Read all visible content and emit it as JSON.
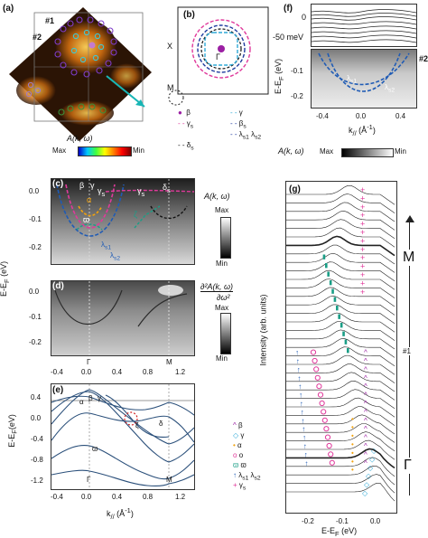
{
  "panels": {
    "a": {
      "label": "(a)",
      "marker1": "#1",
      "marker2": "#2",
      "title": "A(k, ω)",
      "colorbar": {
        "max": "Max",
        "min": "Min"
      }
    },
    "b": {
      "label": "(b)",
      "x_label": "X",
      "m_label": "M",
      "gamma": "Γ",
      "legend": [
        {
          "symbol": "●",
          "text": "β"
        },
        {
          "symbol": "- -",
          "text": "γ"
        },
        {
          "symbol": "- -",
          "text": "β"
        },
        {
          "symbol": "- -",
          "text": "γ"
        },
        {
          "symbol": "- -",
          "text": "λ"
        },
        {
          "symbol": "- -",
          "text": "λ"
        },
        {
          "symbol": "- -",
          "text": "δ"
        }
      ],
      "legend_subs": [
        "s",
        "s",
        "s1",
        "s2",
        "s"
      ],
      "legend_colors": {
        "beta": "#9b1fa3",
        "gamma_s": "#e0399b",
        "gamma": "#2fa9d6",
        "beta_s": "#2fa9d6",
        "lambda": "#1f3b9e",
        "delta_s": "#111111"
      }
    },
    "c": {
      "label": "(c)",
      "title": "A(k, ω)",
      "cb_max": "Max",
      "cb_min": "Min",
      "annotations": [
        "β",
        "γ",
        "γ",
        "α",
        "ϖ",
        "γ",
        "δ",
        "ζ",
        "λ",
        "λ"
      ],
      "ann_subs": [
        "s",
        "s",
        "s",
        "s1",
        "s2"
      ]
    },
    "d": {
      "label": "(d)",
      "title": "∂²A(k, ω)",
      "title_den": "∂ω²",
      "cb_max": "Max",
      "cb_min": "Min"
    },
    "e": {
      "label": "(e)",
      "annotations": [
        "α",
        "β",
        "γ",
        "ζ",
        "δ",
        "ϖ"
      ]
    },
    "f": {
      "label": "(f)",
      "zero": "0",
      "mev": "-50 meV",
      "marker2": "#2",
      "annotations": [
        "λ",
        "λ"
      ],
      "ann_subs": [
        "s1",
        "s2"
      ],
      "xticks": [
        "-0.4",
        "0.0",
        "0.4"
      ],
      "yticks": [
        "-0.1",
        "-0.2"
      ],
      "ylabel": "E-E",
      "ylabel_sub": "F",
      "ylabel_unit": " (eV)",
      "xlabel": "k",
      "xlabel_sub": "//",
      "xlabel_unit": " (Å",
      "xlabel_sup": "-1",
      "xlabel_end": ")",
      "cbar_label": "A(k, ω)",
      "cb_max": "Max",
      "cb_min": "Min"
    },
    "g": {
      "label": "(g)",
      "ylabel": "Intensity (arb. units)",
      "xlabel": "E-E",
      "xlabel_sub": "F",
      "xlabel_unit": " (eV)",
      "xticks": [
        "-0.2",
        "-0.1",
        "0.0"
      ],
      "right": {
        "M": "M",
        "mark": "#1",
        "gamma": "Γ"
      },
      "legend": [
        {
          "sym": "^",
          "text": "β",
          "color": "#9b1fa3"
        },
        {
          "sym": "◇",
          "text": "γ",
          "color": "#2fa9d6"
        },
        {
          "sym": "•",
          "text": "α",
          "color": "#f2a20c"
        },
        {
          "sym": "o",
          "text": "o",
          "color": "#e0399b"
        },
        {
          "sym": "ϖ",
          "text": "ϖ",
          "color": "#1a9e86"
        },
        {
          "sym": "↑",
          "text": "λ",
          "color": "#1f5bb5"
        },
        {
          "sym": "+",
          "text": "γ",
          "color": "#e0399b"
        }
      ],
      "legend_extra": "λ",
      "legend_subs": [
        "s1",
        "s2",
        "s"
      ]
    },
    "cde_axes": {
      "c_yticks": [
        "0.0",
        "-0.1",
        "-0.2"
      ],
      "d_yticks": [
        "0.0",
        "-0.1",
        "-0.2"
      ],
      "e_yticks": [
        "0.4",
        "0.0",
        "-0.4",
        "-0.8",
        "-1.2"
      ],
      "xticks": [
        "-0.4",
        "0.0",
        "0.4",
        "0.8",
        "1.2"
      ],
      "ylabel_cd": "E-E",
      "ylabel_cd_sub": "F",
      "ylabel_cd_unit": " (eV)",
      "ylabel_e": "E-E",
      "ylabel_e_sub": "F",
      "ylabel_e_unit": "(eV)",
      "xlabel": "k",
      "xlabel_sub": "//",
      "xlabel_unit": " (Å",
      "xlabel_sup": "-1",
      "xlabel_end": ")",
      "gamma": "Γ",
      "M": "M"
    }
  }
}
